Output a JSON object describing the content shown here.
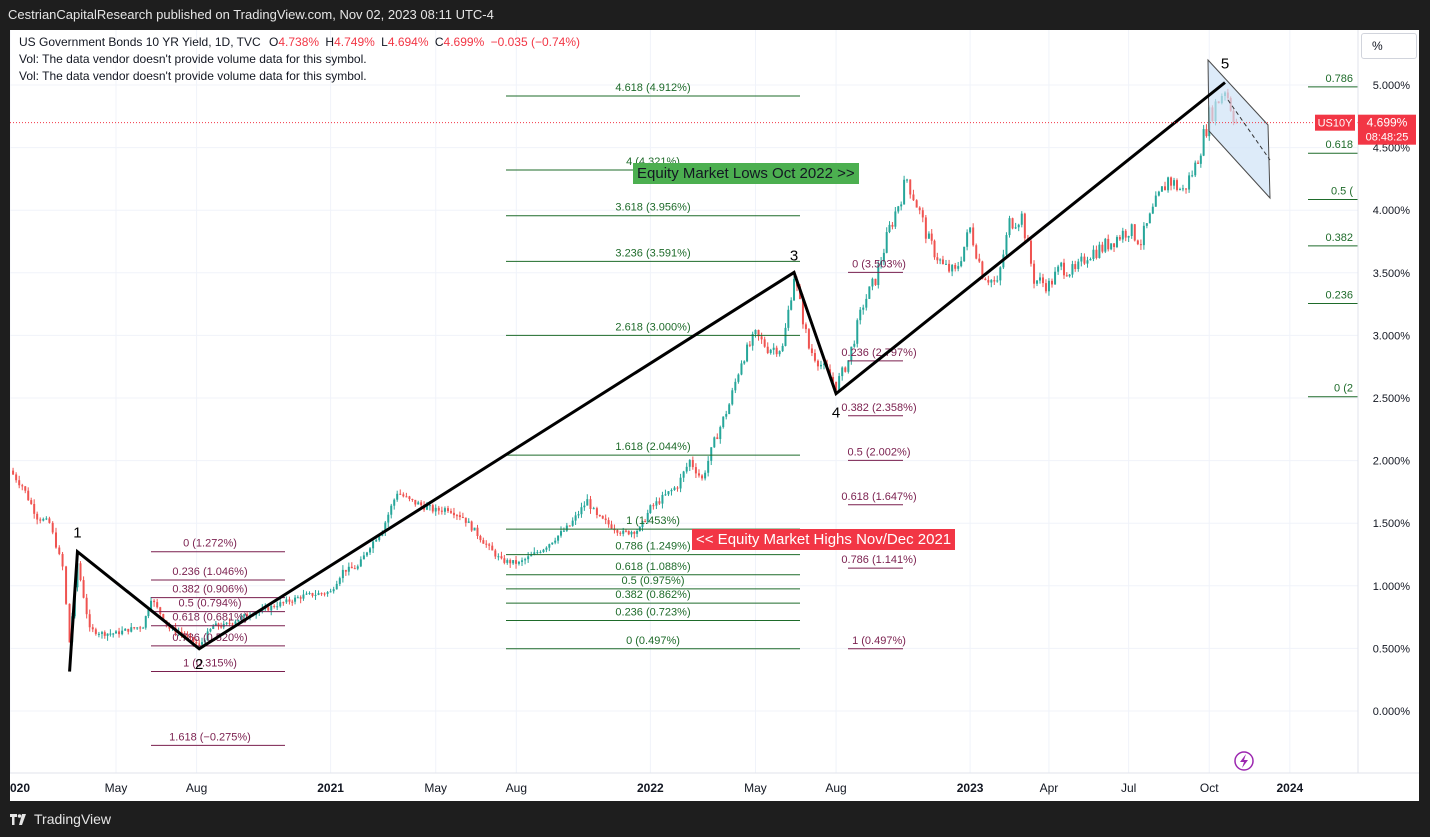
{
  "header": {
    "publish_text": "CestrianCapitalResearch published on TradingView.com, Nov 02, 2023 08:11 UTC-4"
  },
  "legend": {
    "symbol_line": "US Government Bonds 10 YR Yield, 1D, TVC",
    "o_label": "O",
    "o_value": "4.738%",
    "h_label": "H",
    "h_value": "4.749%",
    "l_label": "L",
    "l_value": "4.694%",
    "c_label": "C",
    "c_value": "4.699%",
    "change": "−0.035 (−0.74%)",
    "vol_line_1": "Vol: The data vendor doesn't provide volume data for this symbol.",
    "vol_line_2": "Vol: The data vendor doesn't provide volume data for this symbol."
  },
  "scale_button": "%",
  "price_tag": {
    "symbol": "US10Y",
    "price": "4.699%",
    "countdown": "08:48:25"
  },
  "annotations": {
    "equity_lows": "Equity Market Lows Oct 2022 >>",
    "equity_highs": "<< Equity Market Highs Nov/Dec 2021"
  },
  "footer": {
    "brand": "TradingView"
  },
  "colors": {
    "background": "#1e1e1e",
    "chart_bg": "#ffffff",
    "up_candle": "#26a69a",
    "down_candle": "#ef5350",
    "fib_green": "#1e6b2a",
    "fib_purple": "#7a1f4e",
    "equity_lows_bg": "#4caf50",
    "equity_highs_bg": "#f23645",
    "price_tag": "#f23645",
    "channel_fill": "#cfe2f7"
  },
  "chart_data": {
    "type": "line",
    "title": "US Government Bonds 10 YR Yield, 1D, TVC",
    "y_axis": {
      "ticks": [
        "5.000%",
        "4.500%",
        "4.000%",
        "3.500%",
        "3.000%",
        "2.500%",
        "2.000%",
        "1.500%",
        "1.000%",
        "0.500%",
        "0.000%"
      ],
      "range": [
        -0.5,
        5.4
      ],
      "unit": "%"
    },
    "x_axis": {
      "ticks": [
        "020",
        "May",
        "Aug",
        "2021",
        "May",
        "Aug",
        "2022",
        "May",
        "Aug",
        "2023",
        "Apr",
        "Jul",
        "Oct",
        "2024"
      ],
      "bold_ticks": [
        "020",
        "2021",
        "2022",
        "2023",
        "2024"
      ]
    },
    "series": [
      {
        "values_x": [
          "2020-01-01",
          "2020-01-15",
          "2020-02-01",
          "2020-02-15",
          "2020-03-01",
          "2020-03-09",
          "2020-03-18",
          "2020-04-01",
          "2020-04-15",
          "2020-05-01",
          "2020-05-15",
          "2020-06-01",
          "2020-06-10",
          "2020-07-01",
          "2020-07-15",
          "2020-08-04",
          "2020-08-20",
          "2020-09-01",
          "2020-10-01",
          "2020-10-15",
          "2020-11-01",
          "2020-11-15",
          "2020-12-01",
          "2021-01-01",
          "2021-01-15",
          "2021-02-01",
          "2021-02-15",
          "2021-03-01",
          "2021-03-18",
          "2021-04-01",
          "2021-05-01",
          "2021-05-15",
          "2021-06-01",
          "2021-07-01",
          "2021-07-15",
          "2021-08-04",
          "2021-09-01",
          "2021-10-01",
          "2021-10-21",
          "2021-11-01",
          "2021-12-01",
          "2021-12-20",
          "2022-01-01",
          "2022-02-01",
          "2022-02-15",
          "2022-03-01",
          "2022-03-15",
          "2022-04-01",
          "2022-04-15",
          "2022-05-01",
          "2022-05-15",
          "2022-06-01",
          "2022-06-14",
          "2022-07-01",
          "2022-08-01",
          "2022-08-15",
          "2022-09-01",
          "2022-09-15",
          "2022-10-01",
          "2022-10-21",
          "2022-11-01",
          "2022-11-15",
          "2022-12-01",
          "2022-12-15",
          "2023-01-01",
          "2023-01-15",
          "2023-02-01",
          "2023-02-15",
          "2023-03-01",
          "2023-03-15",
          "2023-04-01",
          "2023-04-15",
          "2023-05-01",
          "2023-05-15",
          "2023-06-01",
          "2023-07-01",
          "2023-07-15",
          "2023-08-01",
          "2023-08-15",
          "2023-09-01",
          "2023-09-15",
          "2023-10-01",
          "2023-10-19",
          "2023-11-01"
        ],
        "values": [
          1.92,
          1.8,
          1.55,
          1.5,
          1.15,
          0.55,
          1.18,
          0.65,
          0.62,
          0.62,
          0.65,
          0.68,
          0.9,
          0.66,
          0.62,
          0.52,
          0.68,
          0.68,
          0.78,
          0.8,
          0.85,
          0.88,
          0.92,
          0.95,
          1.12,
          1.15,
          1.32,
          1.45,
          1.75,
          1.68,
          1.6,
          1.62,
          1.55,
          1.3,
          1.2,
          1.18,
          1.3,
          1.48,
          1.68,
          1.55,
          1.42,
          1.45,
          1.62,
          1.8,
          2.0,
          1.85,
          2.15,
          2.45,
          2.8,
          3.0,
          2.9,
          2.9,
          3.48,
          2.9,
          2.6,
          2.8,
          3.25,
          3.45,
          3.85,
          4.25,
          4.05,
          3.75,
          3.55,
          3.5,
          3.85,
          3.5,
          3.4,
          3.9,
          3.95,
          3.45,
          3.4,
          3.55,
          3.5,
          3.65,
          3.7,
          3.85,
          3.75,
          4.05,
          4.25,
          4.15,
          4.35,
          4.75,
          4.98,
          4.7
        ]
      }
    ],
    "waves": {
      "labels": [
        "1",
        "2",
        "3",
        "4",
        "5"
      ],
      "points": [
        [
          0.315,
          "2020-03-09"
        ],
        [
          1.272,
          "2020-03-18"
        ],
        [
          0.497,
          "2020-08-04"
        ],
        [
          3.503,
          "2022-06-14"
        ],
        [
          2.535,
          "2022-08-01"
        ],
        [
          5.02,
          "2023-10-19"
        ]
      ]
    },
    "fib_sets": [
      {
        "color": "green",
        "levels": [
          {
            "label": "4.618 (4.912%)",
            "value": 4.912
          },
          {
            "label": "4 (4.321%)",
            "value": 4.321
          },
          {
            "label": "3.618 (3.956%)",
            "value": 3.956
          },
          {
            "label": "3.236 (3.591%)",
            "value": 3.591
          },
          {
            "label": "2.618 (3.000%)",
            "value": 3.0
          },
          {
            "label": "1.618 (2.044%)",
            "value": 2.044
          },
          {
            "label": "1 (1.453%)",
            "value": 1.453
          },
          {
            "label": "0.786 (1.249%)",
            "value": 1.249
          },
          {
            "label": "0.618 (1.088%)",
            "value": 1.088
          },
          {
            "label": "0.5 (0.975%)",
            "value": 0.975
          },
          {
            "label": "0.382 (0.862%)",
            "value": 0.862
          },
          {
            "label": "0.236 (0.723%)",
            "value": 0.723
          },
          {
            "label": "0 (0.497%)",
            "value": 0.497
          }
        ]
      },
      {
        "color": "purple",
        "levels": [
          {
            "label": "0 (1.272%)",
            "value": 1.272
          },
          {
            "label": "0.236 (1.046%)",
            "value": 1.046
          },
          {
            "label": "0.382 (0.906%)",
            "value": 0.906
          },
          {
            "label": "0.5 (0.794%)",
            "value": 0.794
          },
          {
            "label": "0.618 (0.681%)",
            "value": 0.681
          },
          {
            "label": "0.786 (0.520%)",
            "value": 0.52
          },
          {
            "label": "1 (0.315%)",
            "value": 0.315
          },
          {
            "label": "1.618 (−0.275%)",
            "value": -0.275
          }
        ]
      },
      {
        "color": "purple",
        "levels": [
          {
            "label": "0 (3.503%)",
            "value": 3.503
          },
          {
            "label": "0.236 (2.797%)",
            "value": 2.797
          },
          {
            "label": "0.382 (2.358%)",
            "value": 2.358
          },
          {
            "label": "0.5 (2.002%)",
            "value": 2.002
          },
          {
            "label": "0.618 (1.647%)",
            "value": 1.647
          },
          {
            "label": "0.786 (1.141%)",
            "value": 1.141
          },
          {
            "label": "1 (0.497%)",
            "value": 0.497
          }
        ]
      },
      {
        "color": "green",
        "levels": [
          {
            "label": "0.786",
            "value": 4.985
          },
          {
            "label": "0.618",
            "value": 4.455
          },
          {
            "label": "0.5 (",
            "value": 4.085
          },
          {
            "label": "0.382",
            "value": 3.715
          },
          {
            "label": "0.236",
            "value": 3.255
          },
          {
            "label": "0 (2",
            "value": 2.51
          }
        ]
      }
    ],
    "current_price": 4.699
  }
}
